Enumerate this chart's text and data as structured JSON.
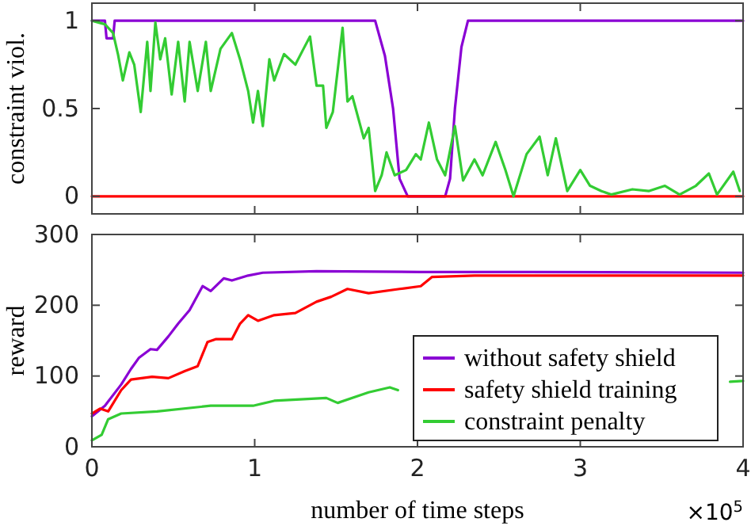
{
  "chart_data": [
    {
      "type": "line",
      "ylabel": "constraint viol.",
      "xlim": [
        0,
        4
      ],
      "xticks": [
        0,
        1,
        2,
        3,
        4
      ],
      "ylim": [
        -0.1,
        1.1
      ],
      "yticks": [
        0,
        0.5,
        1
      ],
      "tick_labels": "y",
      "series": [
        {
          "color": "#8a00d4",
          "x": [
            0,
            0.08,
            0.09,
            0.13,
            0.14,
            1.74,
            1.8,
            1.85,
            1.89,
            1.94,
            2.17,
            2.2,
            2.23,
            2.27,
            2.31,
            4
          ],
          "values": [
            1,
            1,
            0.9,
            0.9,
            1,
            1,
            0.8,
            0.5,
            0.1,
            0,
            0,
            0.1,
            0.5,
            0.85,
            1,
            1
          ]
        },
        {
          "color": "#ff0000",
          "x": [
            0,
            4
          ],
          "values": [
            0,
            0
          ]
        },
        {
          "color": "#33cc33",
          "x": [
            0,
            0.08,
            0.13,
            0.16,
            0.19,
            0.23,
            0.26,
            0.3,
            0.34,
            0.36,
            0.39,
            0.42,
            0.45,
            0.49,
            0.53,
            0.57,
            0.6,
            0.65,
            0.7,
            0.73,
            0.79,
            0.86,
            0.91,
            0.96,
            0.99,
            1.02,
            1.05,
            1.09,
            1.12,
            1.18,
            1.25,
            1.3,
            1.34,
            1.38,
            1.42,
            1.44,
            1.48,
            1.54,
            1.57,
            1.6,
            1.67,
            1.7,
            1.74,
            1.78,
            1.81,
            1.86,
            1.93,
            1.99,
            2.02,
            2.07,
            2.12,
            2.17,
            2.23,
            2.28,
            2.35,
            2.4,
            2.48,
            2.54,
            2.59,
            2.67,
            2.75,
            2.8,
            2.85,
            2.92,
            3.0,
            3.06,
            3.13,
            3.19,
            3.32,
            3.42,
            3.52,
            3.61,
            3.71,
            3.79,
            3.84,
            3.94,
            3.98
          ],
          "values": [
            1,
            0.98,
            0.93,
            0.81,
            0.66,
            0.82,
            0.75,
            0.48,
            0.88,
            0.6,
            0.99,
            0.78,
            0.9,
            0.58,
            0.88,
            0.54,
            0.88,
            0.6,
            0.88,
            0.6,
            0.84,
            0.93,
            0.78,
            0.6,
            0.42,
            0.6,
            0.4,
            0.78,
            0.66,
            0.81,
            0.75,
            0.84,
            0.91,
            0.63,
            0.63,
            0.39,
            0.48,
            0.96,
            0.54,
            0.57,
            0.33,
            0.39,
            0.03,
            0.12,
            0.25,
            0.12,
            0.15,
            0.24,
            0.21,
            0.42,
            0.21,
            0.12,
            0.4,
            0.09,
            0.21,
            0.12,
            0.31,
            0.15,
            0,
            0.24,
            0.34,
            0.12,
            0.33,
            0.03,
            0.15,
            0.06,
            0.03,
            0.01,
            0.04,
            0.03,
            0.06,
            0.01,
            0.06,
            0.13,
            0.01,
            0.14,
            0.03
          ]
        }
      ]
    },
    {
      "type": "line",
      "xlabel": "number of time steps",
      "ylabel": "reward",
      "annotations": [
        "×10$^{5}$"
      ],
      "xlim": [
        0,
        4
      ],
      "xticks": [
        0,
        1,
        2,
        3,
        4
      ],
      "ylim": [
        0,
        300
      ],
      "yticks": [
        0,
        100,
        200,
        300
      ],
      "legend": "bottom right",
      "series": [
        {
          "name": "without safety shield",
          "color": "#8a00d4",
          "x": [
            0,
            0.08,
            0.18,
            0.24,
            0.29,
            0.36,
            0.4,
            0.47,
            0.53,
            0.6,
            0.68,
            0.73,
            0.81,
            0.86,
            0.96,
            1.05,
            1.38,
            2.02,
            2.67,
            4
          ],
          "values": [
            43,
            58,
            88,
            110,
            126,
            138,
            137,
            156,
            174,
            193,
            227,
            220,
            238,
            235,
            242,
            246,
            248,
            247,
            247,
            246
          ]
        },
        {
          "name": "safety shield training",
          "color": "#ff0000",
          "x": [
            0,
            0.05,
            0.1,
            0.18,
            0.24,
            0.37,
            0.47,
            0.57,
            0.65,
            0.71,
            0.76,
            0.86,
            0.91,
            0.96,
            1.02,
            1.12,
            1.25,
            1.38,
            1.47,
            1.57,
            1.7,
            1.89,
            2.02,
            2.09,
            2.35,
            4
          ],
          "values": [
            47,
            54,
            50,
            80,
            95,
            99,
            97,
            107,
            114,
            148,
            152,
            152,
            174,
            186,
            178,
            186,
            189,
            205,
            212,
            223,
            217,
            223,
            227,
            240,
            242,
            242
          ]
        },
        {
          "name": "constraint penalty",
          "color": "#33cc33",
          "x": [
            0,
            0.06,
            0.1,
            0.18,
            0.4,
            0.73,
            0.99,
            1.12,
            1.44,
            1.51,
            1.7,
            1.83,
            1.88,
            2.5,
            3.92,
            4
          ],
          "values": [
            9,
            17,
            39,
            47,
            50,
            58,
            58,
            65,
            69,
            62,
            77,
            84,
            80,
            null,
            92,
            93
          ]
        }
      ]
    }
  ]
}
